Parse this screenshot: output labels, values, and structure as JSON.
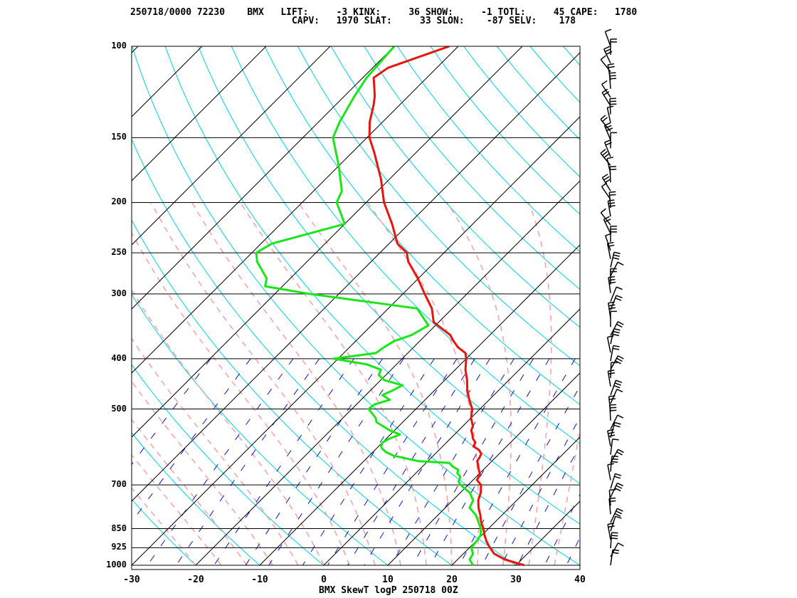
{
  "header": {
    "line1": "250718/0000 72230    BMX   LIFT:     -3 KINX:     36 SHOW:     -1 TOTL:     45 CAPE:   1780",
    "line2": "                             CAPV:   1970 SLAT:     33 SLON:    -87 SELV:    178"
  },
  "footer": {
    "title": "BMX SkewT logP 250718 00Z"
  },
  "colors": {
    "temperature": "#e8150f",
    "dewpoint": "#19e619",
    "isotherm": "#000000",
    "isobar": "#000000",
    "dry_adiabat": "#00d0e0",
    "moist_adiabat": "#f4a0a8",
    "mixing_ratio": "#1010c0",
    "wind_barb": "#000000"
  },
  "chart_data": {
    "type": "line",
    "title": "BMX SkewT logP 250718 00Z",
    "xlabel": "",
    "ylabel": "",
    "x_ticks": [
      "-30",
      "-20",
      "-10",
      "0",
      "10",
      "20",
      "30",
      "40"
    ],
    "x_range": [
      -30,
      40
    ],
    "y_ticks": [
      "100",
      "150",
      "200",
      "250",
      "300",
      "400",
      "500",
      "700",
      "850",
      "925",
      "1000"
    ],
    "y_range": [
      100,
      1000
    ],
    "y_scale": "log",
    "series": [
      {
        "key": "temperature",
        "points": [
          [
            1000,
            31.3
          ],
          [
            975,
            27.4
          ],
          [
            950,
            24.8
          ],
          [
            925,
            23.2
          ],
          [
            900,
            21.7
          ],
          [
            875,
            20.4
          ],
          [
            850,
            19.2
          ],
          [
            825,
            17.8
          ],
          [
            800,
            16.6
          ],
          [
            775,
            15.2
          ],
          [
            750,
            14.0
          ],
          [
            725,
            13.2
          ],
          [
            700,
            12.0
          ],
          [
            685,
            10.6
          ],
          [
            670,
            10.3
          ],
          [
            650,
            9.0
          ],
          [
            640,
            8.4
          ],
          [
            630,
            7.7
          ],
          [
            620,
            7.5
          ],
          [
            610,
            7.2
          ],
          [
            600,
            6.3
          ],
          [
            590,
            4.8
          ],
          [
            580,
            4.5
          ],
          [
            570,
            3.5
          ],
          [
            560,
            2.8
          ],
          [
            550,
            2.0
          ],
          [
            540,
            1.6
          ],
          [
            520,
            0.0
          ],
          [
            500,
            -1.2
          ],
          [
            480,
            -3.1
          ],
          [
            460,
            -4.9
          ],
          [
            440,
            -6.5
          ],
          [
            420,
            -8.4
          ],
          [
            400,
            -10.0
          ],
          [
            390,
            -11.0
          ],
          [
            380,
            -13.1
          ],
          [
            370,
            -14.7
          ],
          [
            360,
            -16.2
          ],
          [
            350,
            -18.5
          ],
          [
            340,
            -20.8
          ],
          [
            320,
            -23.2
          ],
          [
            300,
            -26.6
          ],
          [
            280,
            -30.1
          ],
          [
            260,
            -34.2
          ],
          [
            250,
            -35.8
          ],
          [
            240,
            -38.7
          ],
          [
            220,
            -42.6
          ],
          [
            200,
            -47.2
          ],
          [
            180,
            -51.4
          ],
          [
            160,
            -56.6
          ],
          [
            150,
            -59.6
          ],
          [
            140,
            -62.0
          ],
          [
            130,
            -64.0
          ],
          [
            125,
            -65.2
          ],
          [
            120,
            -66.7
          ],
          [
            115,
            -68.3
          ],
          [
            110,
            -67.6
          ],
          [
            100,
            -61.4
          ]
        ]
      },
      {
        "key": "dewpoint",
        "points": [
          [
            1000,
            23.3
          ],
          [
            975,
            21.9
          ],
          [
            950,
            21.5
          ],
          [
            925,
            20.3
          ],
          [
            900,
            20.1
          ],
          [
            875,
            19.8
          ],
          [
            850,
            18.8
          ],
          [
            800,
            15.9
          ],
          [
            775,
            13.8
          ],
          [
            750,
            13.2
          ],
          [
            725,
            11.5
          ],
          [
            700,
            8.8
          ],
          [
            690,
            8.0
          ],
          [
            675,
            7.5
          ],
          [
            665,
            6.5
          ],
          [
            655,
            6.1
          ],
          [
            645,
            4.7
          ],
          [
            635,
            3.6
          ],
          [
            630,
            -1.5
          ],
          [
            615,
            -6.2
          ],
          [
            605,
            -8.0
          ],
          [
            595,
            -9.2
          ],
          [
            590,
            -9.6
          ],
          [
            580,
            -10.0
          ],
          [
            570,
            -9.5
          ],
          [
            560,
            -8.5
          ],
          [
            550,
            -10.7
          ],
          [
            530,
            -14.1
          ],
          [
            520,
            -14.9
          ],
          [
            500,
            -17.4
          ],
          [
            490,
            -17.2
          ],
          [
            480,
            -15.5
          ],
          [
            470,
            -17.4
          ],
          [
            460,
            -16.5
          ],
          [
            450,
            -15.8
          ],
          [
            440,
            -19.4
          ],
          [
            430,
            -21.1
          ],
          [
            420,
            -21.6
          ],
          [
            410,
            -24.7
          ],
          [
            400,
            -30.7
          ],
          [
            390,
            -25.0
          ],
          [
            380,
            -24.6
          ],
          [
            370,
            -24.0
          ],
          [
            360,
            -22.2
          ],
          [
            345,
            -21.1
          ],
          [
            320,
            -25.5
          ],
          [
            310,
            -34.9
          ],
          [
            300,
            -44.6
          ],
          [
            290,
            -52.7
          ],
          [
            280,
            -53.7
          ],
          [
            260,
            -57.8
          ],
          [
            250,
            -59.3
          ],
          [
            240,
            -58.3
          ],
          [
            220,
            -50.0
          ],
          [
            200,
            -54.6
          ],
          [
            190,
            -55.6
          ],
          [
            170,
            -60.0
          ],
          [
            150,
            -65.3
          ],
          [
            140,
            -66.7
          ],
          [
            125,
            -68.4
          ],
          [
            115,
            -69.4
          ],
          [
            100,
            -70.0
          ]
        ]
      }
    ]
  }
}
